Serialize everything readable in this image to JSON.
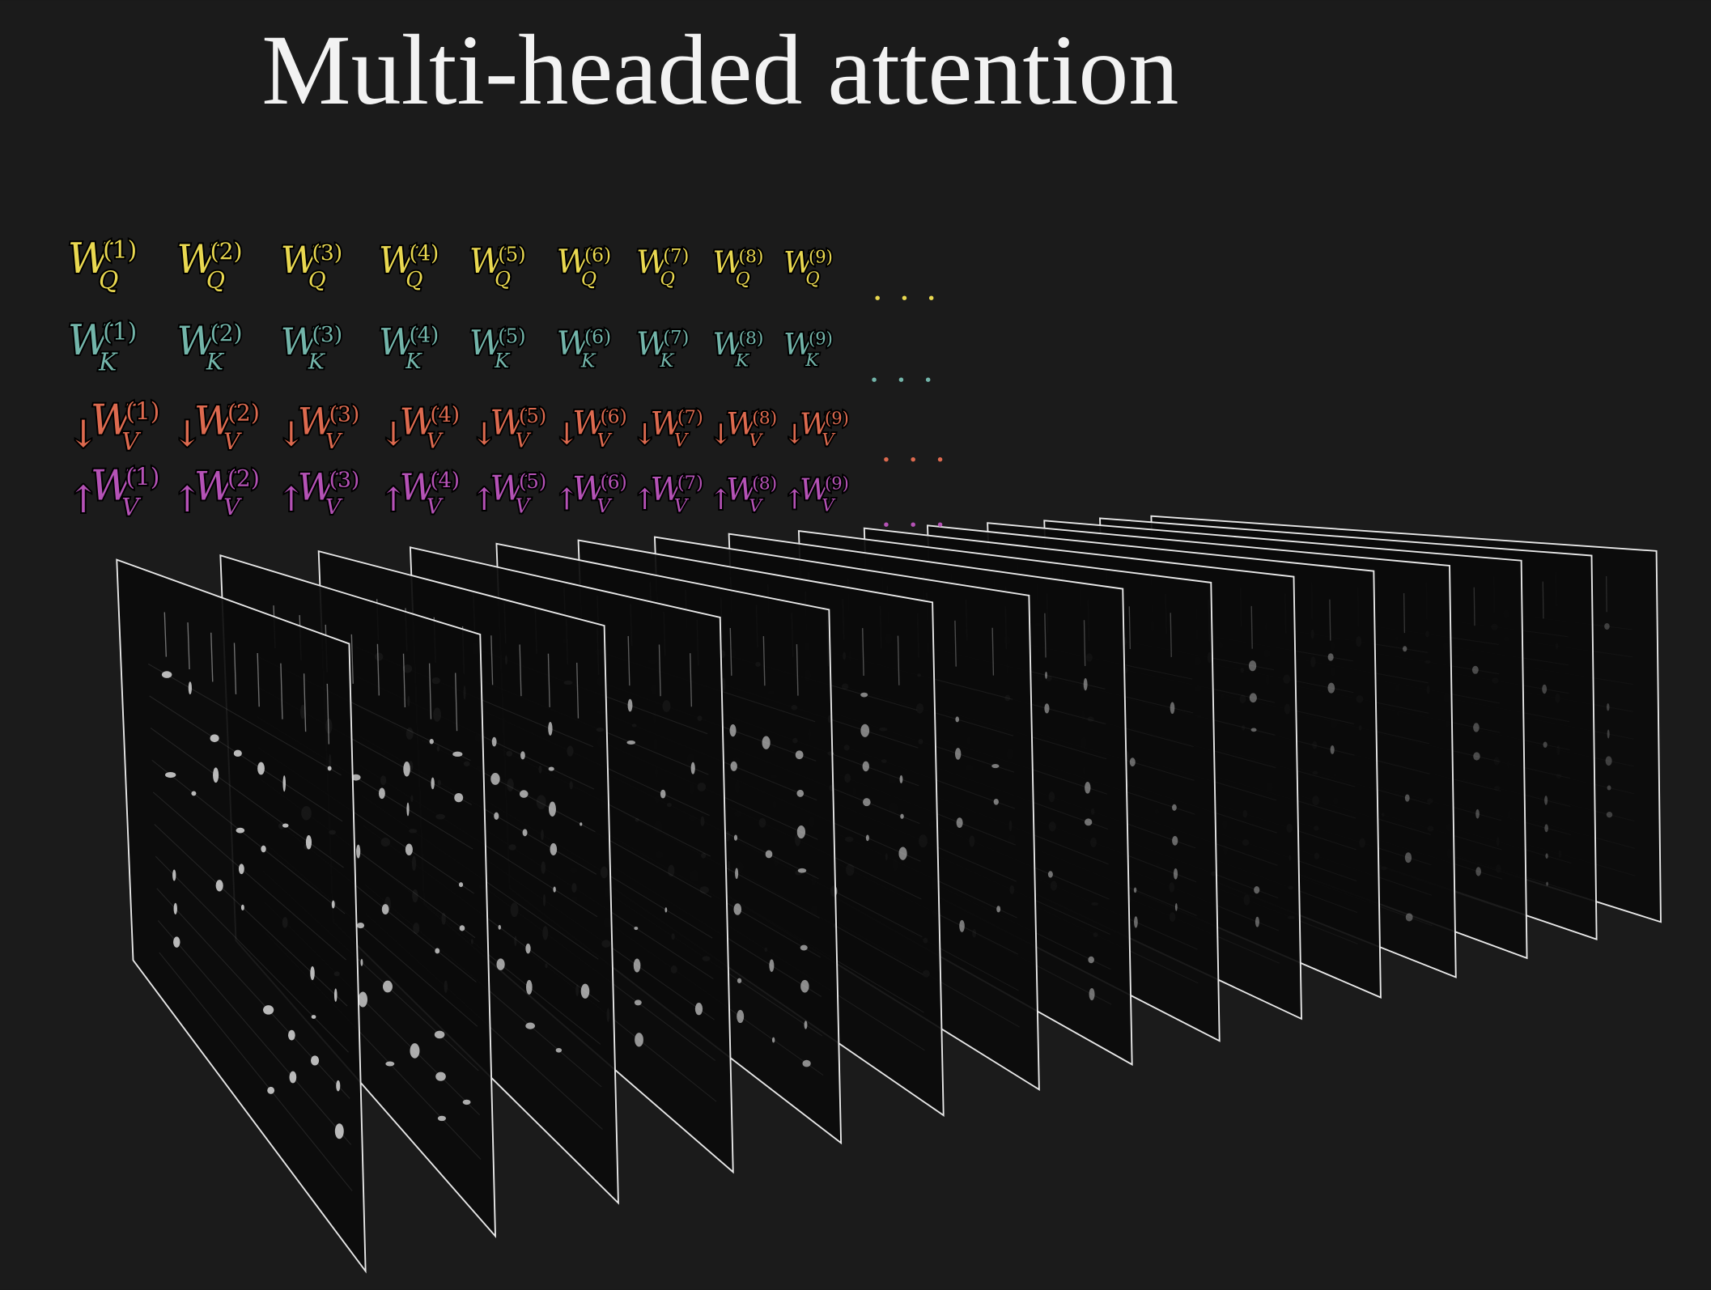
{
  "title": "Multi-headed attention",
  "rows": [
    {
      "symbol": "W",
      "subscript": "Q",
      "color": "#e9d850",
      "heads": [
        "(1)",
        "(2)",
        "(3)",
        "(4)",
        "(5)",
        "(6)",
        "(7)",
        "(8)",
        "(9)"
      ],
      "ellipsis": "• • •"
    },
    {
      "symbol": "W",
      "subscript": "K",
      "color": "#73b5aa",
      "heads": [
        "(1)",
        "(2)",
        "(3)",
        "(4)",
        "(5)",
        "(6)",
        "(7)",
        "(8)",
        "(9)"
      ],
      "ellipsis": "• • •"
    },
    {
      "arrow": "↓",
      "symbol": "W",
      "subscript": "V",
      "color": "#dd6a4f",
      "heads": [
        "(1)",
        "(2)",
        "(3)",
        "(4)",
        "(5)",
        "(6)",
        "(7)",
        "(8)",
        "(9)"
      ],
      "ellipsis": "• • •"
    },
    {
      "arrow": "↑",
      "symbol": "W",
      "subscript": "V",
      "color": "#b552b6",
      "heads": [
        "(1)",
        "(2)",
        "(3)",
        "(4)",
        "(5)",
        "(6)",
        "(7)",
        "(8)",
        "(9)"
      ],
      "ellipsis": "• • •"
    }
  ]
}
